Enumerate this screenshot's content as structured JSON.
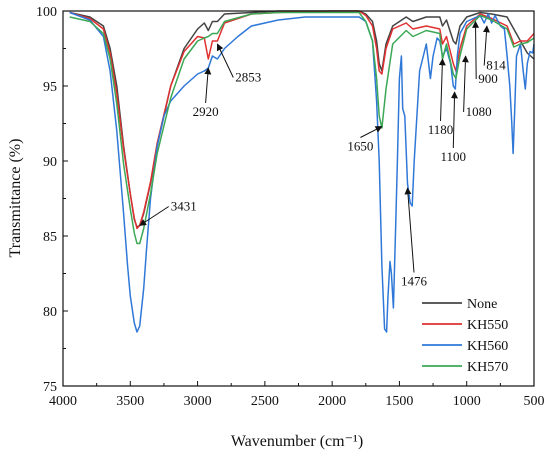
{
  "chart_data": {
    "type": "line",
    "xlabel": "Wavenumber (cm⁻¹)",
    "ylabel": "Transmittance (%)",
    "xlim": [
      4000,
      500
    ],
    "ylim": [
      75,
      100
    ],
    "x_reversed": true,
    "xticks": [
      4000,
      3500,
      3000,
      2500,
      2000,
      1500,
      1000,
      500
    ],
    "yticks": [
      75,
      80,
      85,
      90,
      95,
      100
    ],
    "grid": false,
    "legend_position": "bottom-right",
    "series": [
      {
        "name": "None",
        "color": "#444444",
        "points": [
          [
            3950,
            99.9
          ],
          [
            3800,
            99.6
          ],
          [
            3700,
            99.0
          ],
          [
            3650,
            97.5
          ],
          [
            3600,
            95.0
          ],
          [
            3550,
            91.0
          ],
          [
            3500,
            87.8
          ],
          [
            3470,
            86.1
          ],
          [
            3450,
            85.6
          ],
          [
            3430,
            85.7
          ],
          [
            3400,
            86.5
          ],
          [
            3350,
            88.5
          ],
          [
            3300,
            91.0
          ],
          [
            3200,
            95.0
          ],
          [
            3100,
            97.5
          ],
          [
            3000,
            98.8
          ],
          [
            2950,
            99.2
          ],
          [
            2920,
            98.7
          ],
          [
            2890,
            99.3
          ],
          [
            2853,
            99.3
          ],
          [
            2800,
            99.8
          ],
          [
            2600,
            99.9
          ],
          [
            2400,
            100.0
          ],
          [
            2000,
            100.0
          ],
          [
            1800,
            100.0
          ],
          [
            1750,
            99.8
          ],
          [
            1700,
            99.3
          ],
          [
            1670,
            98.0
          ],
          [
            1650,
            96.5
          ],
          [
            1630,
            96.0
          ],
          [
            1600,
            97.8
          ],
          [
            1550,
            99.0
          ],
          [
            1450,
            99.6
          ],
          [
            1400,
            99.3
          ],
          [
            1300,
            99.6
          ],
          [
            1200,
            99.6
          ],
          [
            1180,
            99.0
          ],
          [
            1150,
            99.4
          ],
          [
            1100,
            98.0
          ],
          [
            1080,
            97.8
          ],
          [
            1050,
            99.0
          ],
          [
            1000,
            99.6
          ],
          [
            900,
            99.9
          ],
          [
            814,
            99.8
          ],
          [
            700,
            99.6
          ],
          [
            650,
            98.8
          ],
          [
            600,
            98.0
          ],
          [
            550,
            97.2
          ],
          [
            500,
            96.8
          ]
        ]
      },
      {
        "name": "KH550",
        "color": "#e03030",
        "points": [
          [
            3950,
            99.9
          ],
          [
            3800,
            99.5
          ],
          [
            3700,
            98.8
          ],
          [
            3650,
            97.2
          ],
          [
            3600,
            94.5
          ],
          [
            3550,
            90.8
          ],
          [
            3500,
            87.8
          ],
          [
            3470,
            86.2
          ],
          [
            3450,
            85.5
          ],
          [
            3430,
            85.7
          ],
          [
            3400,
            86.6
          ],
          [
            3350,
            88.6
          ],
          [
            3300,
            91.2
          ],
          [
            3200,
            95.0
          ],
          [
            3100,
            97.3
          ],
          [
            3000,
            98.3
          ],
          [
            2950,
            98.2
          ],
          [
            2920,
            96.8
          ],
          [
            2890,
            98.0
          ],
          [
            2853,
            98.0
          ],
          [
            2800,
            99.2
          ],
          [
            2600,
            99.8
          ],
          [
            2400,
            99.9
          ],
          [
            2000,
            100.0
          ],
          [
            1800,
            100.0
          ],
          [
            1750,
            99.7
          ],
          [
            1700,
            99.0
          ],
          [
            1670,
            97.5
          ],
          [
            1650,
            96.0
          ],
          [
            1630,
            95.8
          ],
          [
            1600,
            97.5
          ],
          [
            1550,
            98.8
          ],
          [
            1450,
            99.2
          ],
          [
            1400,
            98.8
          ],
          [
            1300,
            99.0
          ],
          [
            1200,
            98.8
          ],
          [
            1180,
            97.8
          ],
          [
            1150,
            98.3
          ],
          [
            1100,
            96.5
          ],
          [
            1080,
            96.0
          ],
          [
            1050,
            97.5
          ],
          [
            1000,
            99.0
          ],
          [
            900,
            99.8
          ],
          [
            814,
            99.5
          ],
          [
            700,
            99.0
          ],
          [
            650,
            97.8
          ],
          [
            600,
            98.0
          ],
          [
            550,
            98.0
          ],
          [
            500,
            98.5
          ]
        ]
      },
      {
        "name": "KH560",
        "color": "#2f78d8",
        "points": [
          [
            3950,
            99.9
          ],
          [
            3800,
            99.4
          ],
          [
            3700,
            98.3
          ],
          [
            3650,
            96.0
          ],
          [
            3600,
            92.0
          ],
          [
            3550,
            86.5
          ],
          [
            3520,
            83.0
          ],
          [
            3500,
            81.0
          ],
          [
            3470,
            79.2
          ],
          [
            3450,
            78.6
          ],
          [
            3430,
            79.0
          ],
          [
            3400,
            81.5
          ],
          [
            3380,
            84.0
          ],
          [
            3350,
            87.5
          ],
          [
            3300,
            91.0
          ],
          [
            3250,
            93.0
          ],
          [
            3200,
            94.0
          ],
          [
            3100,
            95.0
          ],
          [
            3000,
            95.8
          ],
          [
            2950,
            96.0
          ],
          [
            2920,
            96.2
          ],
          [
            2890,
            97.0
          ],
          [
            2853,
            96.8
          ],
          [
            2800,
            97.5
          ],
          [
            2700,
            98.3
          ],
          [
            2600,
            99.0
          ],
          [
            2400,
            99.4
          ],
          [
            2200,
            99.6
          ],
          [
            2000,
            99.6
          ],
          [
            1800,
            99.6
          ],
          [
            1750,
            99.3
          ],
          [
            1700,
            98.0
          ],
          [
            1670,
            94.0
          ],
          [
            1650,
            90.0
          ],
          [
            1630,
            83.0
          ],
          [
            1610,
            78.8
          ],
          [
            1595,
            78.6
          ],
          [
            1585,
            81.0
          ],
          [
            1570,
            83.3
          ],
          [
            1560,
            82.5
          ],
          [
            1545,
            80.2
          ],
          [
            1530,
            85.0
          ],
          [
            1515,
            90.0
          ],
          [
            1500,
            95.5
          ],
          [
            1485,
            97.0
          ],
          [
            1476,
            93.5
          ],
          [
            1460,
            93.0
          ],
          [
            1440,
            88.5
          ],
          [
            1420,
            87.2
          ],
          [
            1405,
            87.0
          ],
          [
            1390,
            90.0
          ],
          [
            1370,
            93.0
          ],
          [
            1350,
            96.0
          ],
          [
            1300,
            97.8
          ],
          [
            1270,
            95.5
          ],
          [
            1250,
            97.0
          ],
          [
            1220,
            98.2
          ],
          [
            1200,
            98.0
          ],
          [
            1180,
            97.0
          ],
          [
            1150,
            97.5
          ],
          [
            1120,
            96.5
          ],
          [
            1100,
            95.0
          ],
          [
            1085,
            94.8
          ],
          [
            1070,
            97.0
          ],
          [
            1050,
            98.5
          ],
          [
            1000,
            99.3
          ],
          [
            950,
            99.5
          ],
          [
            900,
            99.7
          ],
          [
            870,
            99.2
          ],
          [
            840,
            99.8
          ],
          [
            814,
            99.2
          ],
          [
            790,
            99.7
          ],
          [
            750,
            99.0
          ],
          [
            720,
            98.8
          ],
          [
            700,
            97.0
          ],
          [
            680,
            95.0
          ],
          [
            665,
            92.5
          ],
          [
            655,
            90.5
          ],
          [
            645,
            93.0
          ],
          [
            630,
            97.0
          ],
          [
            600,
            97.8
          ],
          [
            580,
            96.0
          ],
          [
            565,
            94.8
          ],
          [
            550,
            96.5
          ],
          [
            530,
            97.3
          ],
          [
            510,
            97.2
          ],
          [
            500,
            97.8
          ]
        ]
      },
      {
        "name": "KH570",
        "color": "#3ca855",
        "points": [
          [
            3950,
            99.6
          ],
          [
            3800,
            99.3
          ],
          [
            3700,
            98.5
          ],
          [
            3650,
            96.8
          ],
          [
            3600,
            93.8
          ],
          [
            3550,
            89.8
          ],
          [
            3500,
            86.8
          ],
          [
            3470,
            85.2
          ],
          [
            3450,
            84.5
          ],
          [
            3430,
            84.5
          ],
          [
            3400,
            85.5
          ],
          [
            3350,
            87.8
          ],
          [
            3300,
            90.5
          ],
          [
            3200,
            94.2
          ],
          [
            3100,
            96.8
          ],
          [
            3000,
            98.0
          ],
          [
            2950,
            98.2
          ],
          [
            2920,
            98.3
          ],
          [
            2890,
            98.5
          ],
          [
            2853,
            98.5
          ],
          [
            2800,
            99.3
          ],
          [
            2600,
            99.8
          ],
          [
            2400,
            99.9
          ],
          [
            2000,
            99.9
          ],
          [
            1800,
            99.9
          ],
          [
            1750,
            99.3
          ],
          [
            1700,
            98.0
          ],
          [
            1670,
            95.5
          ],
          [
            1650,
            93.0
          ],
          [
            1630,
            92.2
          ],
          [
            1600,
            94.8
          ],
          [
            1550,
            97.8
          ],
          [
            1450,
            98.7
          ],
          [
            1400,
            98.3
          ],
          [
            1300,
            98.7
          ],
          [
            1200,
            98.5
          ],
          [
            1180,
            96.8
          ],
          [
            1150,
            97.8
          ],
          [
            1100,
            95.8
          ],
          [
            1080,
            95.5
          ],
          [
            1050,
            97.0
          ],
          [
            1000,
            98.8
          ],
          [
            900,
            99.7
          ],
          [
            814,
            99.4
          ],
          [
            700,
            98.8
          ],
          [
            650,
            97.6
          ],
          [
            600,
            97.8
          ],
          [
            550,
            97.9
          ],
          [
            500,
            98.2
          ]
        ]
      }
    ],
    "annotations": [
      {
        "label": "3431",
        "target": [
          3430,
          85.7
        ],
        "text_pos": [
          3200,
          86.7
        ],
        "anchor": "start"
      },
      {
        "label": "2920",
        "target": [
          2920,
          96.2
        ],
        "text_pos": [
          2940,
          93.0
        ],
        "anchor": "middle"
      },
      {
        "label": "2853",
        "target": [
          2853,
          97.8
        ],
        "text_pos": [
          2720,
          95.3
        ],
        "anchor": "start"
      },
      {
        "label": "1650",
        "target": [
          1630,
          92.3
        ],
        "text_pos": [
          1790,
          90.7
        ],
        "anchor": "middle"
      },
      {
        "label": "1476",
        "target": [
          1440,
          88.2
        ],
        "text_pos": [
          1392,
          81.7
        ],
        "anchor": "middle"
      },
      {
        "label": "1180",
        "target": [
          1180,
          96.8
        ],
        "text_pos": [
          1195,
          91.8
        ],
        "anchor": "middle"
      },
      {
        "label": "1100",
        "target": [
          1090,
          94.6
        ],
        "text_pos": [
          1100,
          90.0
        ],
        "anchor": "middle"
      },
      {
        "label": "1080",
        "target": [
          1008,
          97.0
        ],
        "text_pos": [
          1008,
          93.0
        ],
        "anchor": "start"
      },
      {
        "label": "900",
        "target": [
          935,
          99.3
        ],
        "text_pos": [
          915,
          95.2
        ],
        "anchor": "start"
      },
      {
        "label": "814",
        "target": [
          850,
          99.0
        ],
        "text_pos": [
          855,
          96.1
        ],
        "anchor": "start"
      }
    ]
  }
}
